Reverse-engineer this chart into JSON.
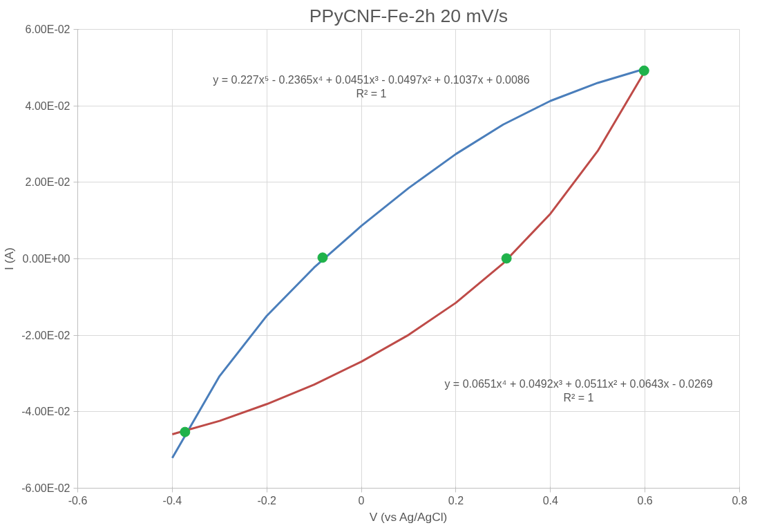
{
  "chart_data": {
    "type": "line",
    "title": "PPyCNF-Fe-2h 20 mV/s",
    "xlabel": "V (vs Ag/AgCl)",
    "ylabel": "I (A)",
    "series": [
      {
        "color": "#4a7ebb",
        "x": [
          -0.4,
          -0.3,
          -0.2,
          -0.1,
          0,
          0.1,
          0.2,
          0.3,
          0.4,
          0.5,
          0.6
        ],
        "values": [
          -0.0521,
          -0.0307,
          -0.0149,
          -0.0023,
          0.0086,
          0.0185,
          0.0274,
          0.0351,
          0.0413,
          0.046,
          0.0497
        ]
      },
      {
        "color": "#be4b48",
        "x": [
          -0.4,
          -0.3,
          -0.2,
          -0.1,
          0,
          0.1,
          0.2,
          0.3,
          0.4,
          0.5,
          0.6
        ],
        "values": [
          -0.0459,
          -0.0424,
          -0.038,
          -0.0329,
          -0.0269,
          -0.0199,
          -0.0115,
          -0.0012,
          0.0118,
          0.0282,
          0.0491
        ]
      },
      {
        "type": "scatter",
        "color": "#1fb24a",
        "marker": "circle",
        "x": [
          -0.373,
          -0.082,
          0.307,
          0.598
        ],
        "values": [
          -0.0453,
          0.0003,
          0.0001,
          0.0492
        ]
      }
    ],
    "annotations": [
      "y = 0.227x⁵ - 0.2365x⁴ + 0.0451x³ - 0.0497x² + 0.1037x + 0.0086\nR² = 1",
      "y = 0.0651x⁴ + 0.0492x³ + 0.0511x² + 0.0643x - 0.0269\nR² = 1"
    ],
    "xlim": [
      -0.6,
      0.8
    ],
    "ylim": [
      -0.06,
      0.06
    ],
    "xticks": [
      -0.6,
      -0.4,
      -0.2,
      {
        "value": 0,
        "label": "0"
      },
      0.2,
      0.4,
      0.6,
      0.8
    ],
    "yticks": [
      {
        "value": -0.06,
        "label": "-6.00E-02"
      },
      {
        "value": -0.04,
        "label": "-4.00E-02"
      },
      {
        "value": -0.02,
        "label": "-2.00E-02"
      },
      {
        "value": 0,
        "label": "0.00E+00"
      },
      {
        "value": 0.02,
        "label": "2.00E-02"
      },
      {
        "value": 0.04,
        "label": "4.00E-02"
      },
      {
        "value": 0.06,
        "label": "6.00E-02"
      }
    ],
    "grid": true,
    "line_style": "solid",
    "marker": "none"
  }
}
